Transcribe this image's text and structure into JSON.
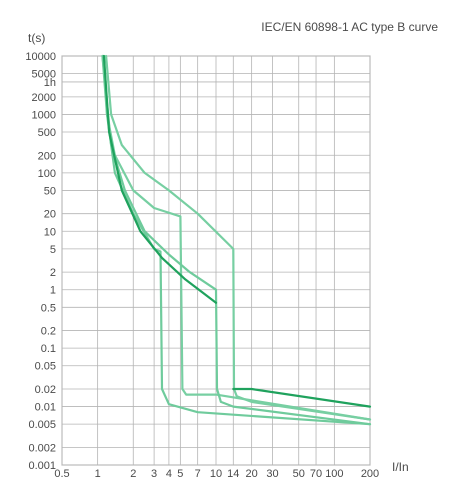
{
  "chart_data": {
    "type": "line",
    "title": "IEC/EN 60898-1 AC type B curve",
    "ylabel": "t(s)",
    "xlabel": "I/In",
    "x_scale": "log",
    "y_scale": "log",
    "xlim": [
      0.5,
      200
    ],
    "ylim": [
      0.001,
      10000
    ],
    "grid": true,
    "legend": "none",
    "x_ticks": [
      {
        "value": 0.5,
        "label": "0.5"
      },
      {
        "value": 1,
        "label": "1"
      },
      {
        "value": 2,
        "label": "2"
      },
      {
        "value": 3,
        "label": "3"
      },
      {
        "value": 4,
        "label": "4"
      },
      {
        "value": 5,
        "label": "5"
      },
      {
        "value": 7,
        "label": "7"
      },
      {
        "value": 10,
        "label": "10"
      },
      {
        "value": 14,
        "label": "14"
      },
      {
        "value": 20,
        "label": "20"
      },
      {
        "value": 30,
        "label": "30"
      },
      {
        "value": 50,
        "label": "50"
      },
      {
        "value": 70,
        "label": "70"
      },
      {
        "value": 100,
        "label": "100"
      },
      {
        "value": 200,
        "label": "200"
      }
    ],
    "y_ticks": [
      {
        "value": 10000,
        "label": "10000"
      },
      {
        "value": 5000,
        "label": "5000"
      },
      {
        "value": 3600,
        "label": "1h"
      },
      {
        "value": 2000,
        "label": "2000"
      },
      {
        "value": 1000,
        "label": "1000"
      },
      {
        "value": 500,
        "label": "500"
      },
      {
        "value": 200,
        "label": "200"
      },
      {
        "value": 100,
        "label": "100"
      },
      {
        "value": 50,
        "label": "50"
      },
      {
        "value": 20,
        "label": "20"
      },
      {
        "value": 10,
        "label": "10"
      },
      {
        "value": 5,
        "label": "5"
      },
      {
        "value": 2,
        "label": "2"
      },
      {
        "value": 1,
        "label": "1"
      },
      {
        "value": 0.5,
        "label": "0.5"
      },
      {
        "value": 0.2,
        "label": "0.2"
      },
      {
        "value": 0.1,
        "label": "0.1"
      },
      {
        "value": 0.05,
        "label": "0.05"
      },
      {
        "value": 0.02,
        "label": "0.02"
      },
      {
        "value": 0.01,
        "label": "0.01"
      },
      {
        "value": 0.005,
        "label": "0.005"
      },
      {
        "value": 0.002,
        "label": "0.002"
      },
      {
        "value": 0.001,
        "label": "0.001"
      }
    ],
    "series": [
      {
        "color": "#77cfa2",
        "points": [
          [
            1.13,
            10000
          ],
          [
            1.2,
            1000
          ],
          [
            1.4,
            200
          ],
          [
            2,
            50
          ],
          [
            3,
            25
          ],
          [
            5,
            18
          ],
          [
            5.2,
            0.02
          ],
          [
            5.6,
            0.016
          ],
          [
            10,
            0.016
          ],
          [
            200,
            0.006
          ]
        ]
      },
      {
        "color": "#77cfa2",
        "points": [
          [
            1.18,
            10000
          ],
          [
            1.3,
            1000
          ],
          [
            1.6,
            300
          ],
          [
            2.5,
            100
          ],
          [
            4,
            50
          ],
          [
            7,
            20
          ],
          [
            14,
            5
          ],
          [
            14.2,
            0.02
          ],
          [
            15,
            0.015
          ],
          [
            20,
            0.012
          ],
          [
            200,
            0.006
          ]
        ]
      },
      {
        "color": "#6fcb9c",
        "points": [
          [
            1.1,
            10000
          ],
          [
            1.2,
            1000
          ],
          [
            1.4,
            100
          ],
          [
            2,
            20
          ],
          [
            3,
            5
          ],
          [
            3.4,
            4.5
          ],
          [
            3.5,
            0.02
          ],
          [
            4,
            0.011
          ],
          [
            7,
            0.008
          ],
          [
            200,
            0.005
          ]
        ]
      },
      {
        "color": "#6fcb9c",
        "points": [
          [
            1.1,
            10000
          ],
          [
            1.3,
            300
          ],
          [
            1.7,
            50
          ],
          [
            2.5,
            10
          ],
          [
            4,
            4
          ],
          [
            6,
            2
          ],
          [
            10,
            1
          ],
          [
            10.2,
            0.02
          ],
          [
            11,
            0.012
          ],
          [
            14,
            0.01
          ],
          [
            200,
            0.005
          ]
        ]
      },
      {
        "color": "#1fa25d",
        "points": [
          [
            1.13,
            10000
          ],
          [
            1.25,
            500
          ],
          [
            1.6,
            50
          ],
          [
            2.3,
            10
          ],
          [
            3.5,
            3.5
          ],
          [
            5.5,
            1.5
          ],
          [
            10,
            0.6
          ]
        ]
      },
      {
        "color": "#1fa25d",
        "points": [
          [
            14,
            0.02
          ],
          [
            20,
            0.02
          ],
          [
            200,
            0.01
          ]
        ]
      }
    ]
  }
}
